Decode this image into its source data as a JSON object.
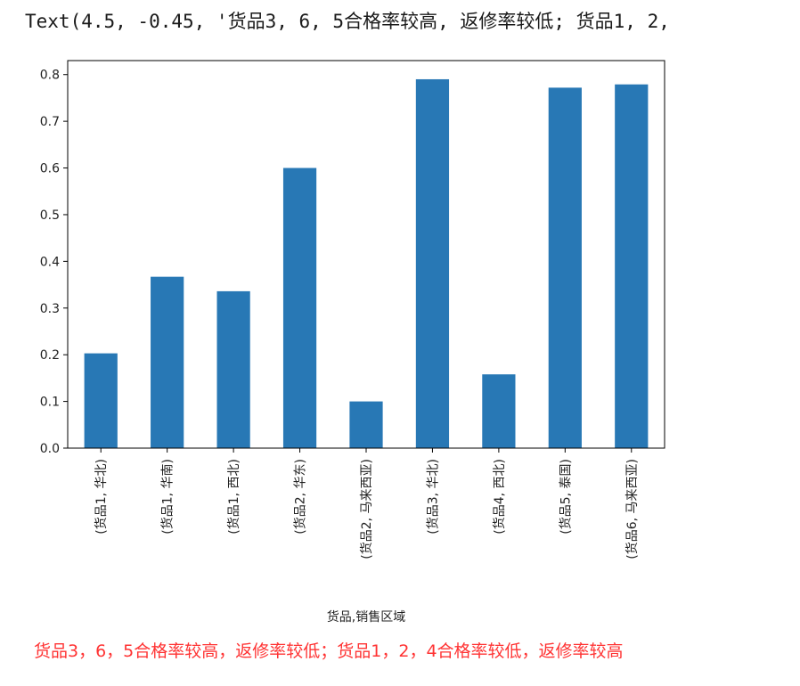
{
  "output": {
    "text": "Text(4.5, -0.45, '货品3, 6, 5合格率较高, 返修率较低; 货品1, 2,"
  },
  "chart_data": {
    "type": "bar",
    "categories": [
      "(货品1, 华北)",
      "(货品1, 华南)",
      "(货品1, 西北)",
      "(货品2, 华东)",
      "(货品2, 马来西亚)",
      "(货品3, 华北)",
      "(货品4, 西北)",
      "(货品5, 泰国)",
      "(货品6, 马来西亚)"
    ],
    "values": [
      0.203,
      0.367,
      0.336,
      0.6,
      0.1,
      0.79,
      0.158,
      0.772,
      0.779
    ],
    "xlabel": "货品,销售区域",
    "ylabel": "",
    "ylim": [
      0,
      0.83
    ],
    "yticks": [
      0.0,
      0.1,
      0.2,
      0.3,
      0.4,
      0.5,
      0.6,
      0.7,
      0.8
    ],
    "ytick_labels": [
      "0.0",
      "0.1",
      "0.2",
      "0.3",
      "0.4",
      "0.5",
      "0.6",
      "0.7",
      "0.8"
    ],
    "bar_color": "#2878b5",
    "grid": false,
    "annotation": {
      "text": "货品3，6，5合格率较高，返修率较低；货品1，2，4合格率较低，返修率较高",
      "color": "#ff3333"
    }
  }
}
